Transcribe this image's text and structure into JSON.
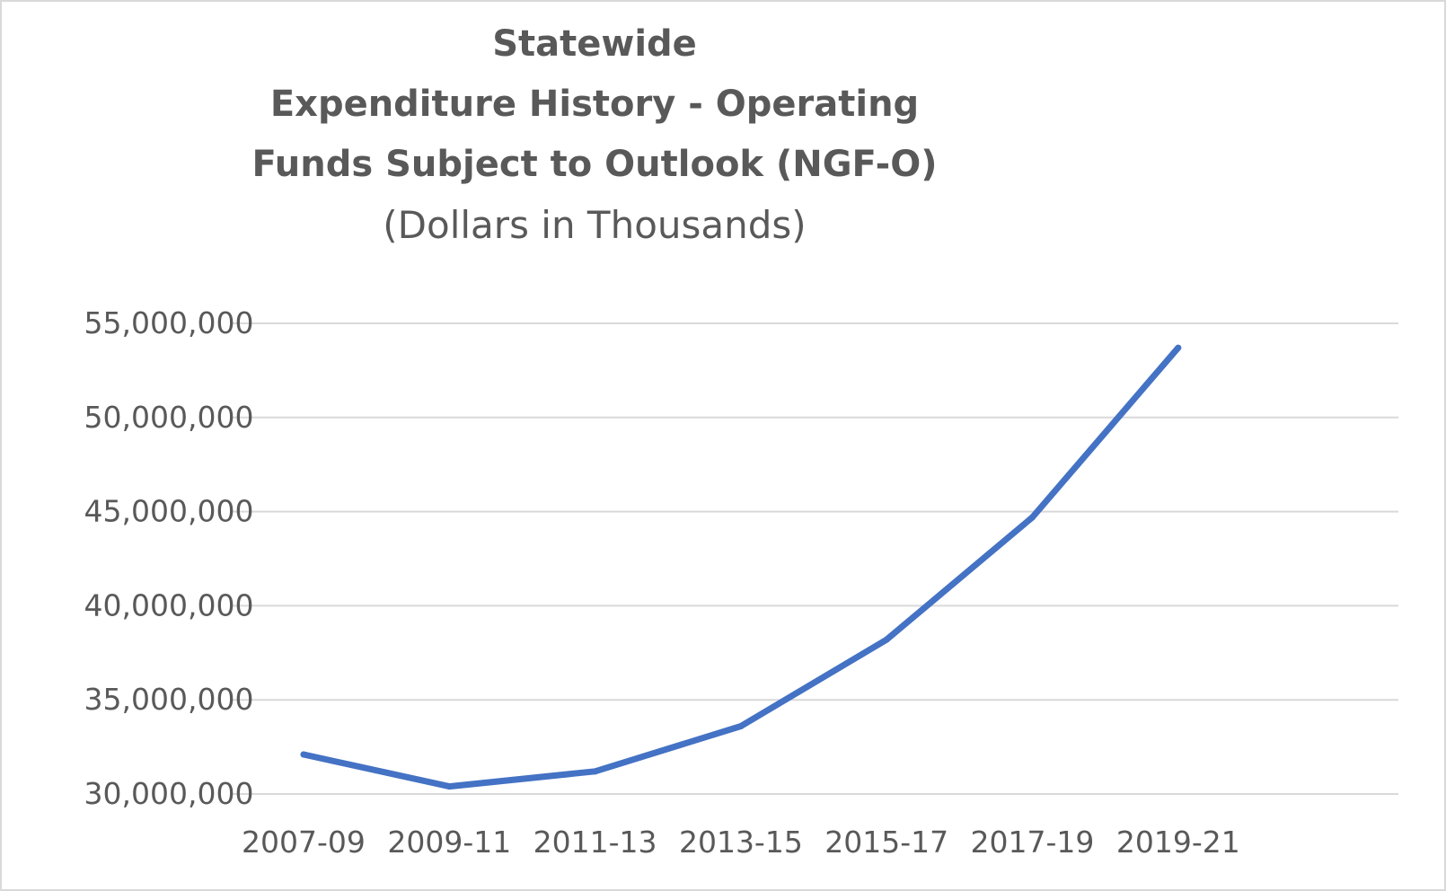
{
  "chart_data": {
    "type": "line",
    "title_lines": [
      "Statewide",
      "Expenditure History - Operating",
      "Funds Subject to Outlook (NGF-O)"
    ],
    "subtitle": "(Dollars in Thousands)",
    "xlabel": "",
    "ylabel": "",
    "categories": [
      "2007-09",
      "2009-11",
      "2011-13",
      "2013-15",
      "2015-17",
      "2017-19",
      "2019-21"
    ],
    "series": [
      {
        "values": [
          32100000,
          30400000,
          31200000,
          33600000,
          38200000,
          44700000,
          53700000
        ],
        "color": "#4472c4"
      }
    ],
    "ylim": [
      30000000,
      55000000
    ],
    "yticks": [
      30000000,
      35000000,
      40000000,
      45000000,
      50000000,
      55000000
    ],
    "ytick_labels": [
      "30,000,000",
      "35,000,000",
      "40,000,000",
      "45,000,000",
      "50,000,000",
      "55,000,000"
    ],
    "grid": true,
    "legend": "none"
  }
}
